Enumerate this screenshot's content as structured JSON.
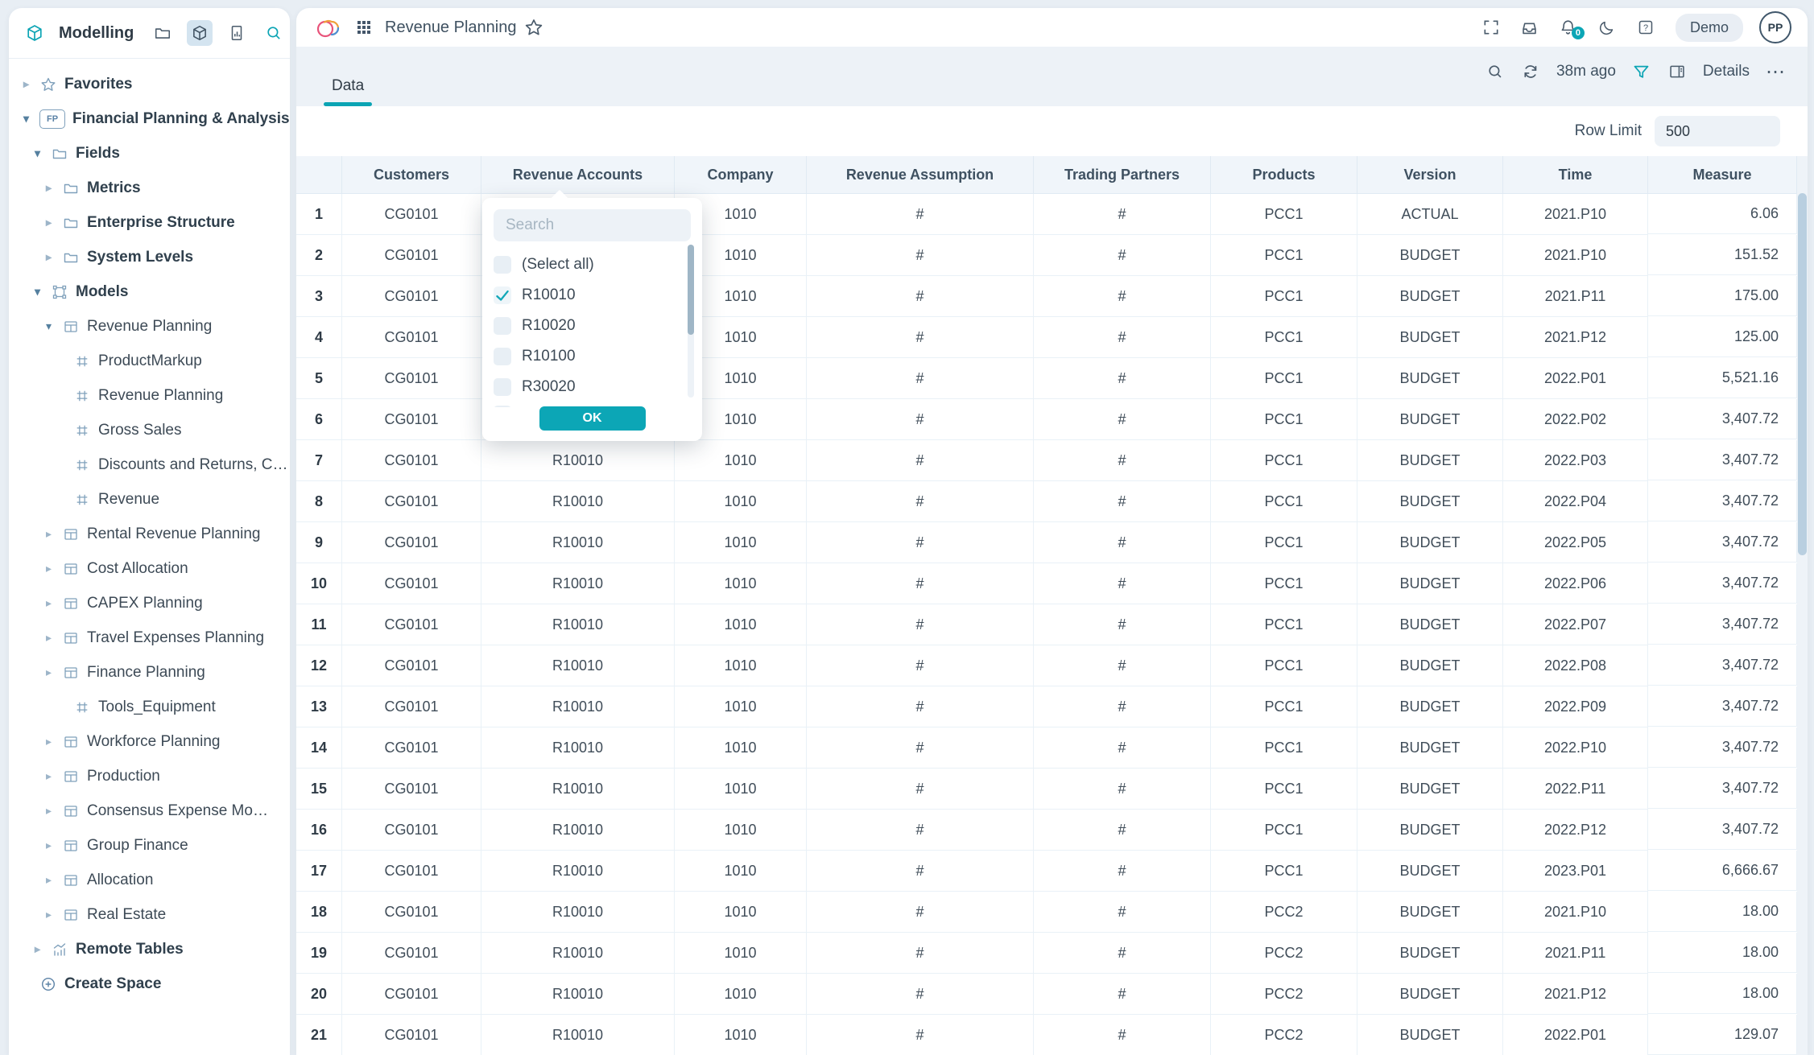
{
  "colors": {
    "accent_teal": "#0ca6b6",
    "panel_bg": "#ffffff",
    "band_bg": "#edf2f7",
    "page_bg": "#e8eef4",
    "steel_icon": "#7fa0bb"
  },
  "sidebar": {
    "title": "Modelling",
    "header_icons": [
      "cube-logo-icon",
      "folder-icon",
      "cube-icon",
      "report-icon",
      "search-icon",
      "collapse-double-chevron-icon"
    ],
    "tree": [
      {
        "label": "Favorites",
        "icon": "star",
        "arrow": "collapsed",
        "level": 0,
        "bold": true
      },
      {
        "label": "Financial Planning & Analysis",
        "icon": "fp",
        "arrow": "expanded",
        "level": 0,
        "bold": true
      },
      {
        "label": "Fields",
        "icon": "folder",
        "arrow": "expanded",
        "level": 1,
        "bold": true
      },
      {
        "label": "Metrics",
        "icon": "folder",
        "arrow": "collapsed",
        "level": 2,
        "bold": true
      },
      {
        "label": "Enterprise Structure",
        "icon": "folder",
        "arrow": "collapsed",
        "level": 2,
        "bold": true
      },
      {
        "label": "System Levels",
        "icon": "folder",
        "arrow": "collapsed",
        "level": 2,
        "bold": true
      },
      {
        "label": "Models",
        "icon": "models",
        "arrow": "expanded",
        "level": 1,
        "bold": true
      },
      {
        "label": "Revenue Planning",
        "icon": "table",
        "arrow": "expanded",
        "level": 2,
        "bold": false
      },
      {
        "label": "ProductMarkup",
        "icon": "frame",
        "arrow": "none",
        "level": 3,
        "bold": false
      },
      {
        "label": "Revenue Planning",
        "icon": "frame",
        "arrow": "none",
        "level": 3,
        "bold": false
      },
      {
        "label": "Gross Sales",
        "icon": "frame",
        "arrow": "none",
        "level": 3,
        "bold": false
      },
      {
        "label": "Discounts and Returns, C…",
        "icon": "frame",
        "arrow": "none",
        "level": 3,
        "bold": false
      },
      {
        "label": "Revenue",
        "icon": "frame",
        "arrow": "none",
        "level": 3,
        "bold": false
      },
      {
        "label": "Rental Revenue Planning",
        "icon": "table",
        "arrow": "collapsed",
        "level": 2,
        "bold": false
      },
      {
        "label": "Cost Allocation",
        "icon": "table",
        "arrow": "collapsed",
        "level": 2,
        "bold": false
      },
      {
        "label": "CAPEX Planning",
        "icon": "table",
        "arrow": "collapsed",
        "level": 2,
        "bold": false
      },
      {
        "label": "Travel Expenses Planning",
        "icon": "table",
        "arrow": "collapsed",
        "level": 2,
        "bold": false
      },
      {
        "label": "Finance Planning",
        "icon": "table",
        "arrow": "collapsed",
        "level": 2,
        "bold": false
      },
      {
        "label": "Tools_Equipment",
        "icon": "frame",
        "arrow": "none",
        "level": 3,
        "bold": false
      },
      {
        "label": "Workforce Planning",
        "icon": "table",
        "arrow": "collapsed",
        "level": 2,
        "bold": false
      },
      {
        "label": "Production",
        "icon": "table",
        "arrow": "collapsed",
        "level": 2,
        "bold": false
      },
      {
        "label": "Consensus Expense Mo…",
        "icon": "table",
        "arrow": "collapsed",
        "level": 2,
        "bold": false
      },
      {
        "label": "Group Finance",
        "icon": "table",
        "arrow": "collapsed",
        "level": 2,
        "bold": false
      },
      {
        "label": "Allocation",
        "icon": "table",
        "arrow": "collapsed",
        "level": 2,
        "bold": false
      },
      {
        "label": "Real Estate",
        "icon": "table",
        "arrow": "collapsed",
        "level": 2,
        "bold": false
      },
      {
        "label": "Remote Tables",
        "icon": "chart",
        "arrow": "collapsed",
        "level": 1,
        "bold": true
      },
      {
        "label": "Create Space",
        "icon": "plus",
        "arrow": "none",
        "level": 0,
        "bold": true
      }
    ]
  },
  "header": {
    "title": "Revenue Planning",
    "badge": "Demo",
    "avatar": "PP",
    "notification_count": "0"
  },
  "tabs": [
    {
      "label": "Data",
      "active": true
    }
  ],
  "toolbar": {
    "refresh_ago": "38m ago",
    "details_label": "Details",
    "more_label": "⋯"
  },
  "row_limit": {
    "label": "Row Limit",
    "value": "500"
  },
  "filter_popup": {
    "column": "Revenue Accounts",
    "search_placeholder": "Search",
    "options": [
      {
        "label": "(Select all)",
        "checked": false
      },
      {
        "label": "R10010",
        "checked": true
      },
      {
        "label": "R10020",
        "checked": false
      },
      {
        "label": "R10100",
        "checked": false
      },
      {
        "label": "R30020",
        "checked": false
      }
    ],
    "ok_label": "OK"
  },
  "table": {
    "columns": [
      "",
      "Customers",
      "Revenue Accounts",
      "Company",
      "Revenue Assumption",
      "Trading Partners",
      "Products",
      "Version",
      "Time",
      "Measure"
    ],
    "rows": [
      [
        "1",
        "CG0101",
        "R10010",
        "1010",
        "#",
        "#",
        "PCC1",
        "ACTUAL",
        "2021.P10",
        "6.06"
      ],
      [
        "2",
        "CG0101",
        "R10010",
        "1010",
        "#",
        "#",
        "PCC1",
        "BUDGET",
        "2021.P10",
        "151.52"
      ],
      [
        "3",
        "CG0101",
        "R10010",
        "1010",
        "#",
        "#",
        "PCC1",
        "BUDGET",
        "2021.P11",
        "175.00"
      ],
      [
        "4",
        "CG0101",
        "R10010",
        "1010",
        "#",
        "#",
        "PCC1",
        "BUDGET",
        "2021.P12",
        "125.00"
      ],
      [
        "5",
        "CG0101",
        "R10010",
        "1010",
        "#",
        "#",
        "PCC1",
        "BUDGET",
        "2022.P01",
        "5,521.16"
      ],
      [
        "6",
        "CG0101",
        "R10010",
        "1010",
        "#",
        "#",
        "PCC1",
        "BUDGET",
        "2022.P02",
        "3,407.72"
      ],
      [
        "7",
        "CG0101",
        "R10010",
        "1010",
        "#",
        "#",
        "PCC1",
        "BUDGET",
        "2022.P03",
        "3,407.72"
      ],
      [
        "8",
        "CG0101",
        "R10010",
        "1010",
        "#",
        "#",
        "PCC1",
        "BUDGET",
        "2022.P04",
        "3,407.72"
      ],
      [
        "9",
        "CG0101",
        "R10010",
        "1010",
        "#",
        "#",
        "PCC1",
        "BUDGET",
        "2022.P05",
        "3,407.72"
      ],
      [
        "10",
        "CG0101",
        "R10010",
        "1010",
        "#",
        "#",
        "PCC1",
        "BUDGET",
        "2022.P06",
        "3,407.72"
      ],
      [
        "11",
        "CG0101",
        "R10010",
        "1010",
        "#",
        "#",
        "PCC1",
        "BUDGET",
        "2022.P07",
        "3,407.72"
      ],
      [
        "12",
        "CG0101",
        "R10010",
        "1010",
        "#",
        "#",
        "PCC1",
        "BUDGET",
        "2022.P08",
        "3,407.72"
      ],
      [
        "13",
        "CG0101",
        "R10010",
        "1010",
        "#",
        "#",
        "PCC1",
        "BUDGET",
        "2022.P09",
        "3,407.72"
      ],
      [
        "14",
        "CG0101",
        "R10010",
        "1010",
        "#",
        "#",
        "PCC1",
        "BUDGET",
        "2022.P10",
        "3,407.72"
      ],
      [
        "15",
        "CG0101",
        "R10010",
        "1010",
        "#",
        "#",
        "PCC1",
        "BUDGET",
        "2022.P11",
        "3,407.72"
      ],
      [
        "16",
        "CG0101",
        "R10010",
        "1010",
        "#",
        "#",
        "PCC1",
        "BUDGET",
        "2022.P12",
        "3,407.72"
      ],
      [
        "17",
        "CG0101",
        "R10010",
        "1010",
        "#",
        "#",
        "PCC1",
        "BUDGET",
        "2023.P01",
        "6,666.67"
      ],
      [
        "18",
        "CG0101",
        "R10010",
        "1010",
        "#",
        "#",
        "PCC2",
        "BUDGET",
        "2021.P10",
        "18.00"
      ],
      [
        "19",
        "CG0101",
        "R10010",
        "1010",
        "#",
        "#",
        "PCC2",
        "BUDGET",
        "2021.P11",
        "18.00"
      ],
      [
        "20",
        "CG0101",
        "R10010",
        "1010",
        "#",
        "#",
        "PCC2",
        "BUDGET",
        "2021.P12",
        "18.00"
      ],
      [
        "21",
        "CG0101",
        "R10010",
        "1010",
        "#",
        "#",
        "PCC2",
        "BUDGET",
        "2022.P01",
        "129.07"
      ]
    ]
  }
}
